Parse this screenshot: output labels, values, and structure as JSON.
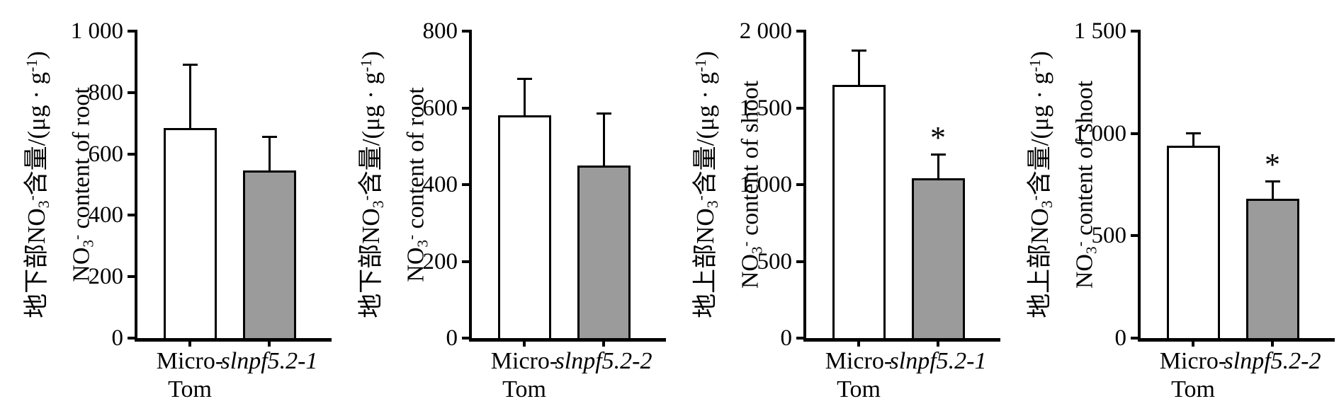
{
  "figure": {
    "background": "#ffffff",
    "axis_color": "#000000",
    "wildtype_bar_fill": "#ffffff",
    "mutant_bar_fill": "#9b9b9b",
    "significance_marker": "*"
  },
  "chart_data": [
    {
      "type": "bar",
      "id": "no3-content-of-root-slnpf5-2-1",
      "ylabel_zh_segments": [
        {
          "t": "地下部NO"
        },
        {
          "t": "3",
          "s": "sub"
        },
        {
          "t": "-",
          "s": "sup"
        },
        {
          "t": "含量/(μg · g"
        },
        {
          "t": "-1",
          "s": "sup"
        },
        {
          "t": ")"
        }
      ],
      "ylabel_en_segments": [
        {
          "t": "NO"
        },
        {
          "t": "3",
          "s": "sub"
        },
        {
          "t": "-",
          "s": "sup"
        },
        {
          "t": " content of root"
        }
      ],
      "categories": [
        {
          "lines": [
            "Micro-",
            "Tom"
          ],
          "italic": false
        },
        {
          "lines": [
            "slnpf5.2-1"
          ],
          "italic": true
        }
      ],
      "values": [
        685,
        545
      ],
      "errors_plus": [
        205,
        110
      ],
      "significance": [
        "",
        ""
      ],
      "ylim": [
        0,
        1000
      ],
      "ytick_values": [
        0,
        200,
        400,
        600,
        800,
        1000
      ],
      "ytick_labels": [
        "0",
        "200",
        "400",
        "600",
        "800",
        "1 000"
      ],
      "bar_colors": [
        "#ffffff",
        "#9b9b9b"
      ],
      "grid": false,
      "legend": "none"
    },
    {
      "type": "bar",
      "id": "no3-content-of-root-slnpf5-2-2",
      "ylabel_zh_segments": [
        {
          "t": "地下部NO"
        },
        {
          "t": "3",
          "s": "sub"
        },
        {
          "t": "-",
          "s": "sup"
        },
        {
          "t": "含量/(μg · g"
        },
        {
          "t": "-1",
          "s": "sup"
        },
        {
          "t": ")"
        }
      ],
      "ylabel_en_segments": [
        {
          "t": "NO"
        },
        {
          "t": "3",
          "s": "sub"
        },
        {
          "t": "-",
          "s": "sup"
        },
        {
          "t": " content of root"
        }
      ],
      "categories": [
        {
          "lines": [
            "Micro-",
            "Tom"
          ],
          "italic": false
        },
        {
          "lines": [
            "slnpf5.2-2"
          ],
          "italic": true
        }
      ],
      "values": [
        580,
        450
      ],
      "errors_plus": [
        95,
        135
      ],
      "significance": [
        "",
        ""
      ],
      "ylim": [
        0,
        800
      ],
      "ytick_values": [
        0,
        200,
        400,
        600,
        800
      ],
      "ytick_labels": [
        "0",
        "200",
        "400",
        "600",
        "800"
      ],
      "bar_colors": [
        "#ffffff",
        "#9b9b9b"
      ],
      "grid": false,
      "legend": "none"
    },
    {
      "type": "bar",
      "id": "no3-content-of-shoot-slnpf5-2-1",
      "ylabel_zh_segments": [
        {
          "t": "地上部NO"
        },
        {
          "t": "3",
          "s": "sub"
        },
        {
          "t": "-",
          "s": "sup"
        },
        {
          "t": "含量/(μg · g"
        },
        {
          "t": "-1",
          "s": "sup"
        },
        {
          "t": ")"
        }
      ],
      "ylabel_en_segments": [
        {
          "t": "NO"
        },
        {
          "t": "3",
          "s": "sub"
        },
        {
          "t": "-",
          "s": "sup"
        },
        {
          "t": " content of shoot"
        }
      ],
      "categories": [
        {
          "lines": [
            "Micro-",
            "Tom"
          ],
          "italic": false
        },
        {
          "lines": [
            "slnpf5.2-1"
          ],
          "italic": true
        }
      ],
      "values": [
        1650,
        1040
      ],
      "errors_plus": [
        220,
        155
      ],
      "significance": [
        "",
        "*"
      ],
      "ylim": [
        0,
        2000
      ],
      "ytick_values": [
        0,
        500,
        1000,
        1500,
        2000
      ],
      "ytick_labels": [
        "0",
        "500",
        "1 000",
        "1 500",
        "2 000"
      ],
      "bar_colors": [
        "#ffffff",
        "#9b9b9b"
      ],
      "grid": false,
      "legend": "none"
    },
    {
      "type": "bar",
      "id": "no3-content-of-shoot-slnpf5-2-2",
      "ylabel_zh_segments": [
        {
          "t": "地上部NO"
        },
        {
          "t": "3",
          "s": "sub"
        },
        {
          "t": "-",
          "s": "sup"
        },
        {
          "t": "含量/(μg · g"
        },
        {
          "t": "-1",
          "s": "sup"
        },
        {
          "t": ")"
        }
      ],
      "ylabel_en_segments": [
        {
          "t": "NO"
        },
        {
          "t": "3",
          "s": "sub"
        },
        {
          "t": "-",
          "s": "sup"
        },
        {
          "t": " content of shoot"
        }
      ],
      "categories": [
        {
          "lines": [
            "Micro-",
            "Tom"
          ],
          "italic": false
        },
        {
          "lines": [
            "slnpf5.2-2"
          ],
          "italic": true
        }
      ],
      "values": [
        940,
        680
      ],
      "errors_plus": [
        60,
        85
      ],
      "significance": [
        "",
        "*"
      ],
      "ylim": [
        0,
        1500
      ],
      "ytick_values": [
        0,
        500,
        1000,
        1500
      ],
      "ytick_labels": [
        "0",
        "500",
        "1 000",
        "1 500"
      ],
      "bar_colors": [
        "#ffffff",
        "#9b9b9b"
      ],
      "grid": false,
      "legend": "none"
    }
  ]
}
